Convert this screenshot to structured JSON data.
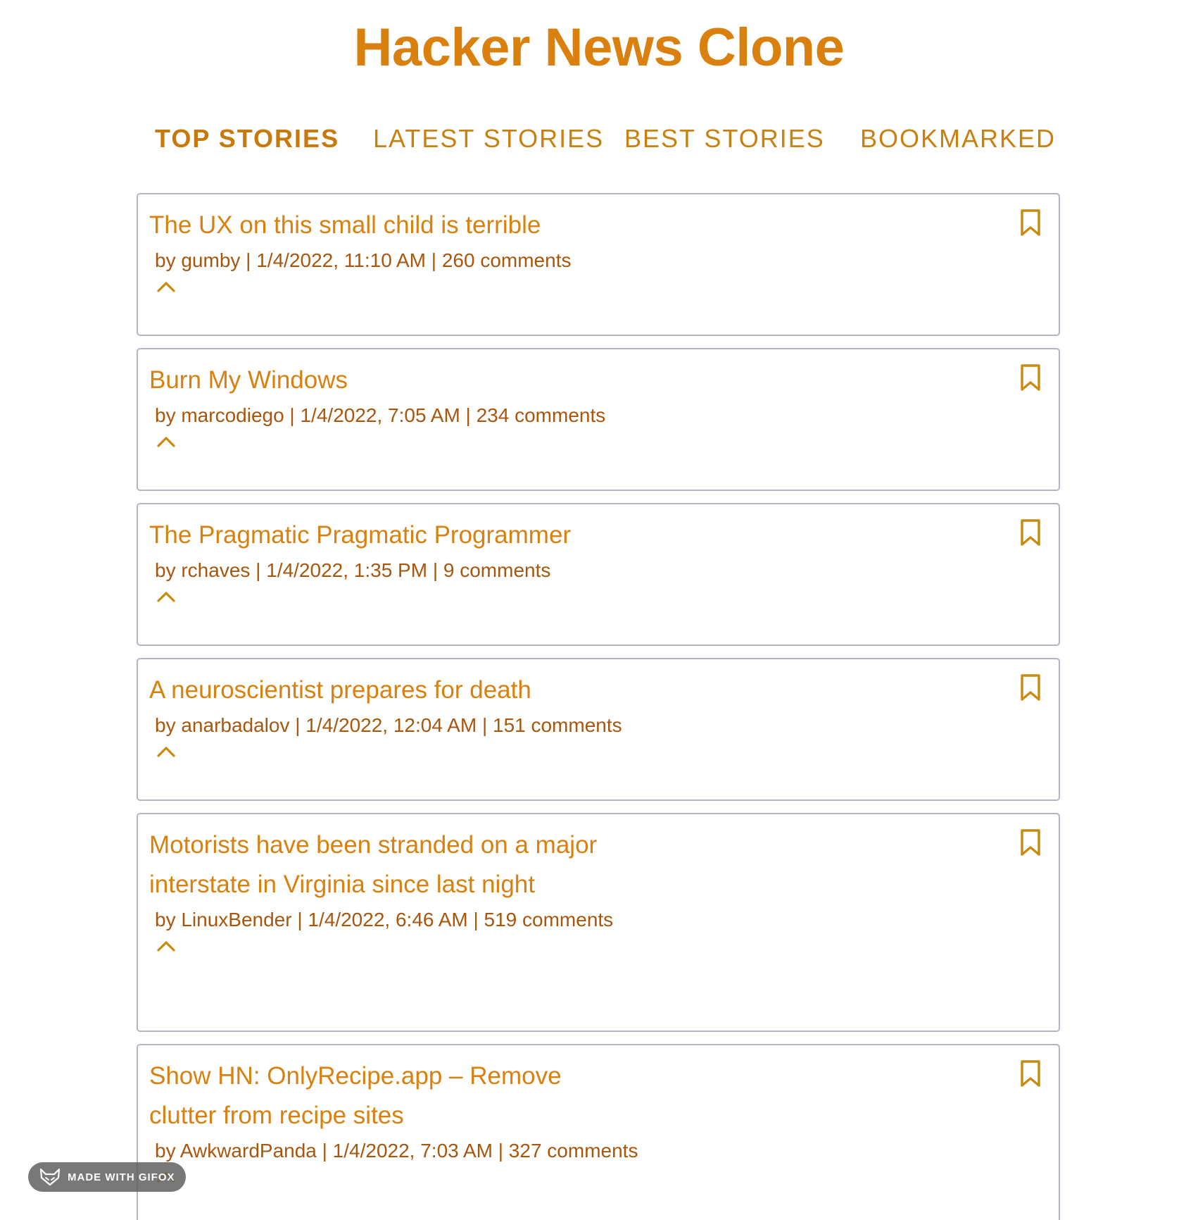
{
  "header": {
    "title": "Hacker News Clone"
  },
  "nav": {
    "tabs": [
      {
        "label": "TOP STORIES",
        "active": true
      },
      {
        "label": "LATEST STORIES",
        "active": false
      },
      {
        "label": "BEST STORIES",
        "active": false
      },
      {
        "label": "BOOKMARKED",
        "active": false
      }
    ]
  },
  "stories": [
    {
      "title": "The UX on this small child is terrible",
      "meta": "by gumby | 1/4/2022, 11:10 AM | 260 comments"
    },
    {
      "title": "Burn My Windows",
      "meta": "by marcodiego | 1/4/2022, 7:05 AM | 234 comments"
    },
    {
      "title": "The Pragmatic Pragmatic Programmer",
      "meta": "by rchaves | 1/4/2022, 1:35 PM | 9 comments"
    },
    {
      "title": "A neuroscientist prepares for death",
      "meta": "by anarbadalov | 1/4/2022, 12:04 AM | 151 comments"
    },
    {
      "title": "Motorists have been stranded on a major interstate in Virginia since last night",
      "meta": "by LinuxBender | 1/4/2022, 6:46 AM | 519 comments"
    },
    {
      "title": "Show HN: OnlyRecipe.app – Remove clutter from recipe sites",
      "meta": "by AwkwardPanda | 1/4/2022, 7:03 AM | 327 comments"
    }
  ],
  "icons": {
    "bookmark": "bookmark-icon",
    "upvote": "chevron-up-icon"
  },
  "badge": {
    "label": "MADE WITH GIFOX"
  },
  "colors": {
    "accent": "#d9800f",
    "meta": "#a9560d",
    "card_border": "#b2b5c2"
  }
}
